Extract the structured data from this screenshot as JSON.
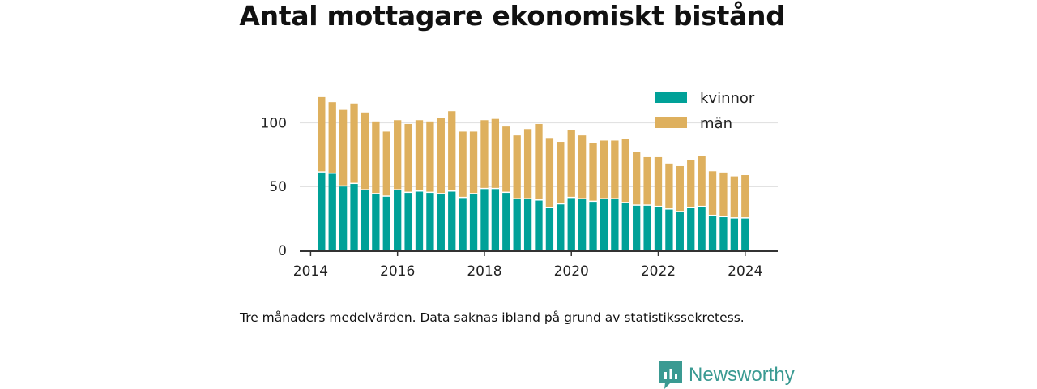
{
  "title": "Antal mottagare ekonomiskt bistånd",
  "note": "Tre månaders medelvärden. Data saknas ibland på grund av statistikssekretess.",
  "brand": {
    "name": "Newsworthy",
    "icon": "newsworthy-logo-icon"
  },
  "colors": {
    "kvinnor": "#00a198",
    "man": "#deb05e",
    "axis": "#333333",
    "grid": "#e2e2e2",
    "text": "#222222"
  },
  "chart_data": {
    "type": "bar",
    "stacked": true,
    "x_ticks": [
      "2014",
      "2016",
      "2018",
      "2020",
      "2022",
      "2024"
    ],
    "y_ticks": [
      "0",
      "50",
      "100"
    ],
    "ylim": [
      0,
      125
    ],
    "xlim": [
      "2013-10",
      "2024-10"
    ],
    "grid": true,
    "legend": {
      "position": "top-right"
    },
    "x": [
      "2014-04",
      "2014-07",
      "2014-10",
      "2015-01",
      "2015-04",
      "2015-07",
      "2015-10",
      "2016-01",
      "2016-04",
      "2016-07",
      "2016-10",
      "2017-01",
      "2017-04",
      "2017-07",
      "2017-10",
      "2018-01",
      "2018-04",
      "2018-07",
      "2018-10",
      "2019-01",
      "2019-04",
      "2019-07",
      "2019-10",
      "2020-01",
      "2020-04",
      "2020-07",
      "2020-10",
      "2021-01",
      "2021-04",
      "2021-07",
      "2021-10",
      "2022-01",
      "2022-04",
      "2022-07",
      "2022-10",
      "2023-01",
      "2023-04",
      "2023-07",
      "2023-10",
      "2024-01"
    ],
    "series": [
      {
        "name": "kvinnor",
        "values": [
          61,
          60,
          50,
          52,
          47,
          44,
          42,
          47,
          45,
          46,
          45,
          44,
          46,
          41,
          44,
          48,
          48,
          45,
          40,
          40,
          39,
          33,
          36,
          41,
          40,
          38,
          40,
          40,
          37,
          35,
          35,
          34,
          32,
          30,
          33,
          34,
          27,
          26,
          25,
          25
        ]
      },
      {
        "name": "män",
        "values": [
          59,
          56,
          60,
          63,
          61,
          57,
          51,
          55,
          54,
          56,
          56,
          60,
          63,
          52,
          49,
          54,
          55,
          52,
          50,
          55,
          60,
          55,
          49,
          53,
          50,
          46,
          46,
          46,
          50,
          42,
          38,
          39,
          36,
          36,
          38,
          40,
          35,
          35,
          33,
          34
        ]
      }
    ]
  }
}
